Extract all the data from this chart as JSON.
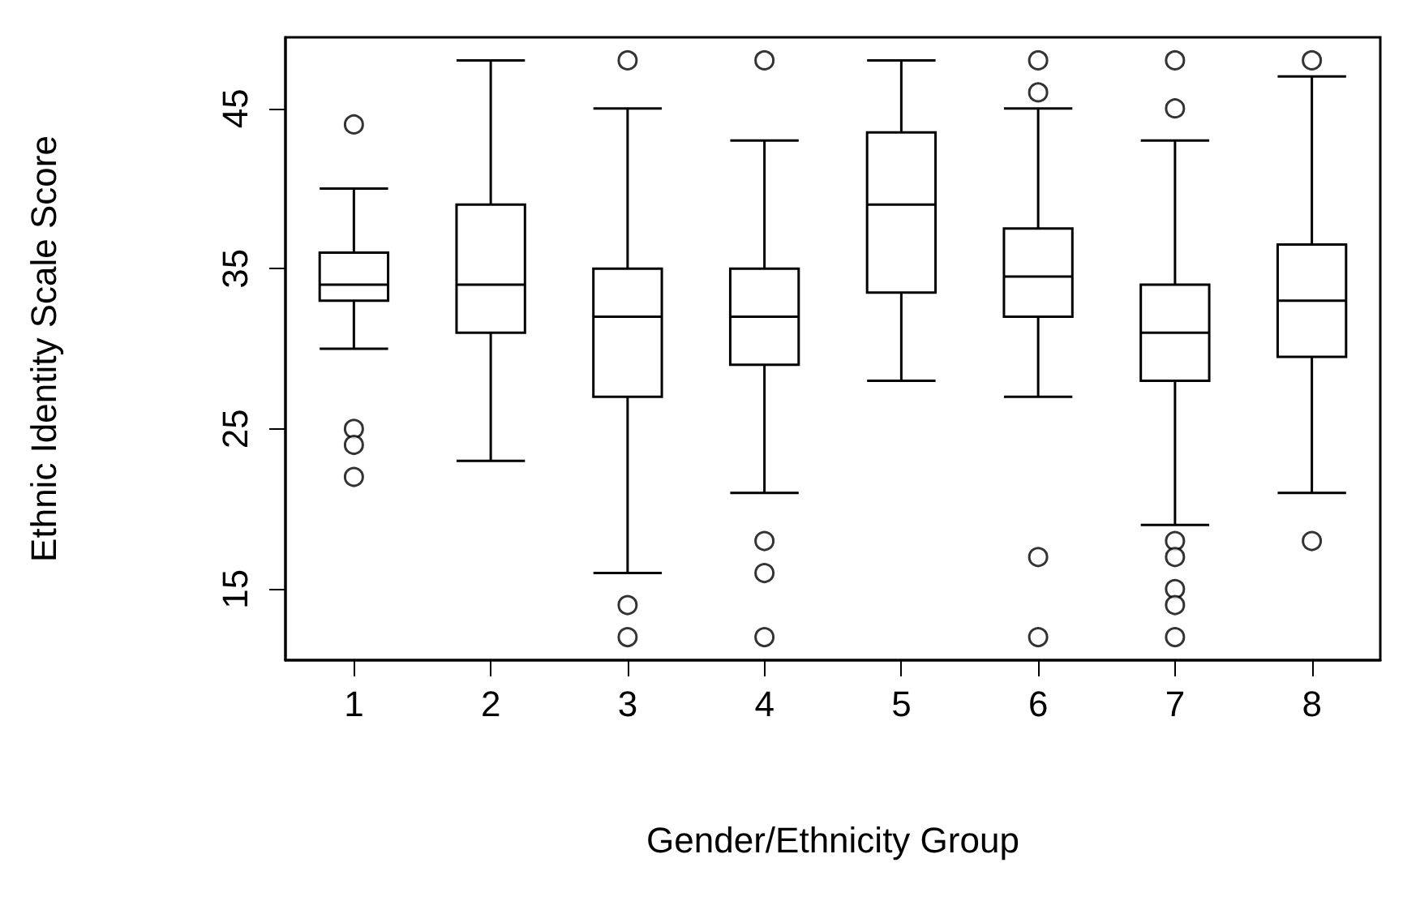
{
  "chart_data": {
    "type": "box",
    "xlabel": "Gender/Ethnicity Group",
    "ylabel": "Ethnic Identity Scale Score",
    "categories": [
      "1",
      "2",
      "3",
      "4",
      "5",
      "6",
      "7",
      "8"
    ],
    "ylim": [
      10.56,
      49.44
    ],
    "yticks": [
      15,
      25,
      35,
      45
    ],
    "grid": false,
    "marker": "circle",
    "boxes": [
      {
        "low": 30,
        "q1": 33,
        "median": 34,
        "q3": 36,
        "high": 40,
        "outliers": [
          44,
          25,
          24,
          22
        ]
      },
      {
        "low": 23,
        "q1": 31,
        "median": 34,
        "q3": 39,
        "high": 48
      },
      {
        "low": 16,
        "q1": 27,
        "median": 32,
        "q3": 35,
        "high": 45,
        "outliers": [
          48,
          14,
          12
        ]
      },
      {
        "low": 21,
        "q1": 29,
        "median": 32,
        "q3": 35,
        "high": 43,
        "outliers": [
          48,
          18,
          16,
          12
        ]
      },
      {
        "low": 28,
        "q1": 33.5,
        "median": 39,
        "q3": 43.5,
        "high": 48
      },
      {
        "low": 27,
        "q1": 32,
        "median": 34.5,
        "q3": 37.5,
        "high": 45,
        "outliers": [
          48,
          46,
          17,
          12
        ]
      },
      {
        "low": 19,
        "q1": 28,
        "median": 31,
        "q3": 34,
        "high": 43,
        "outliers": [
          48,
          45,
          18,
          17,
          15,
          14,
          12
        ]
      },
      {
        "low": 21,
        "q1": 29.5,
        "median": 33,
        "q3": 36.5,
        "high": 47,
        "outliers": [
          48,
          18
        ]
      }
    ]
  }
}
